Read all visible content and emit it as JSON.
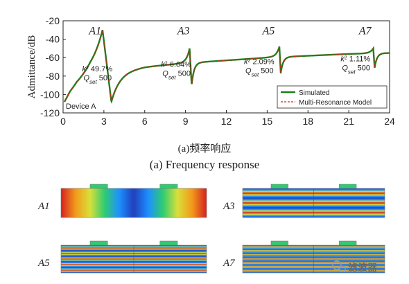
{
  "chart_data": {
    "type": "line",
    "device_label": "Device A",
    "xlabel": "",
    "ylabel": "Admittance/dB",
    "xlim": [
      0,
      24
    ],
    "ylim": [
      -120,
      -20
    ],
    "xticks": [
      0,
      3,
      6,
      9,
      12,
      15,
      18,
      21,
      24
    ],
    "yticks": [
      -20,
      -40,
      -60,
      -80,
      -100,
      -120
    ],
    "series": [
      {
        "name": "Simulated",
        "color": "#1a7f1a",
        "style": "solid"
      },
      {
        "name": "Multi-Resonance Model",
        "color": "#e02020",
        "style": "dashed"
      }
    ],
    "curve": {
      "base_points": [
        [
          0.1,
          -110
        ],
        [
          0.5,
          -100
        ],
        [
          1,
          -92
        ],
        [
          2,
          -82
        ],
        [
          3,
          -77
        ],
        [
          6,
          -70
        ],
        [
          9,
          -66
        ],
        [
          12,
          -63
        ],
        [
          15,
          -60
        ],
        [
          18,
          -58
        ],
        [
          21,
          -56
        ],
        [
          23.5,
          -55
        ],
        [
          24,
          -55
        ]
      ],
      "resonances": [
        {
          "fr": 2.9,
          "fa": 3.55,
          "peak": -30,
          "dip": -108
        },
        {
          "fr": 9.3,
          "fa": 9.45,
          "peak": -50,
          "dip": -90
        },
        {
          "fr": 15.9,
          "fa": 16.0,
          "peak": -48,
          "dip": -77
        },
        {
          "fr": 22.8,
          "fa": 22.9,
          "peak": -50,
          "dip": -71
        }
      ]
    },
    "mode_labels": [
      {
        "name": "A1",
        "x": 2.35,
        "y": -30
      },
      {
        "name": "A3",
        "x": 8.85,
        "y": -30
      },
      {
        "name": "A5",
        "x": 15.1,
        "y": -30
      },
      {
        "name": "A7",
        "x": 22.2,
        "y": -30
      }
    ],
    "annotations": [
      {
        "k2": "49.7%",
        "q_label": "Q",
        "q_sub": "set",
        "q_val": "500",
        "x": 1.4,
        "y": -75
      },
      {
        "k2": "6.64%",
        "q_label": "Q",
        "q_sub": "set",
        "q_val": "500",
        "x": 7.2,
        "y": -70
      },
      {
        "k2": "2.09%",
        "q_label": "Q",
        "q_sub": "set",
        "q_val": "500",
        "x": 13.3,
        "y": -67
      },
      {
        "k2": "1.11%",
        "q_label": "Q",
        "q_sub": "set",
        "q_val": "500",
        "x": 20.4,
        "y": -64
      }
    ],
    "legend_position": "bottom-right"
  },
  "captions": {
    "chinese": "(a)频率响应",
    "english": "(a) Frequency response"
  },
  "mode_shapes": [
    {
      "label": "A1",
      "stripes": 1
    },
    {
      "label": "A3",
      "stripes": 3
    },
    {
      "label": "A5",
      "stripes": 5
    },
    {
      "label": "A7",
      "stripes": 7
    }
  ],
  "watermark": "滤波器"
}
